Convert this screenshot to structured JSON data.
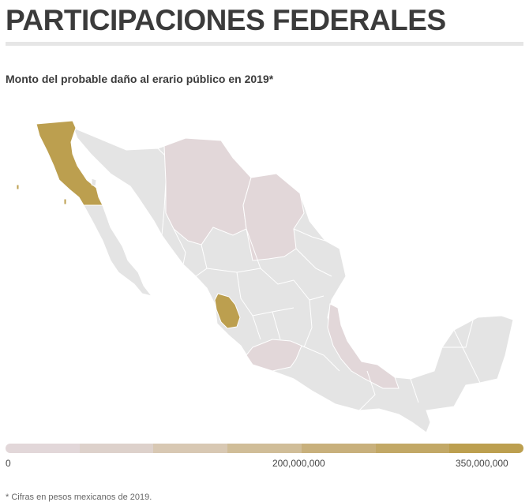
{
  "header": {
    "title": "PARTICIPACIONES FEDERALES",
    "subtitle": "Monto del probable daño al erario público en 2019*"
  },
  "legend": {
    "colors": [
      "#e2d7d9",
      "#ddd1cb",
      "#d8c8b3",
      "#d0bd98",
      "#c8b07c",
      "#c2a866",
      "#bc9f4f"
    ],
    "labels": {
      "min": "0",
      "mid": "200,000,000",
      "max": "350,000,000"
    }
  },
  "map": {
    "states": [
      {
        "name": "Baja California",
        "level": "high"
      },
      {
        "name": "Nayarit",
        "level": "high"
      },
      {
        "name": "Chihuahua",
        "level": "low"
      },
      {
        "name": "Coahuila",
        "level": "low"
      },
      {
        "name": "Guerrero",
        "level": "low"
      },
      {
        "name": "Veracruz",
        "level": "low"
      }
    ],
    "colors": {
      "base": "#e4e4e4",
      "low": "#e2d7d9",
      "high": "#bc9f4f",
      "border": "#ffffff"
    }
  },
  "footnote": "* Cifras en pesos mexicanos de 2019."
}
